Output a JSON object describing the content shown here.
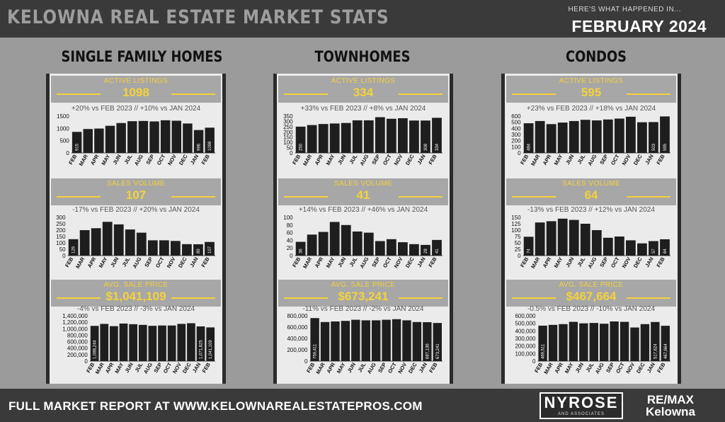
{
  "header": {
    "title": "KELOWNA REAL ESTATE MARKET STATS",
    "subtitle": "HERE'S WHAT HAPPENED IN...",
    "month": "FEBRUARY 2024"
  },
  "footer": {
    "text": "FULL MARKET REPORT AT WWW.KELOWNAREALESTATEPROS.COM",
    "logo_name": "NYROSE",
    "logo_sub": "AND ASSOCIATES",
    "brand_line1": "RE/MAX",
    "brand_line2": "Kelowna"
  },
  "colors": {
    "bars": "#1e1e1e",
    "accent": "#f4d23c",
    "panel": "#ebebeb",
    "band": "#a7a7a7"
  },
  "columns": [
    {
      "title": "SINGLE FAMILY HOMES",
      "sections": [
        {
          "label": "ACTIVE LISTINGS",
          "value": "1098",
          "comparison": "+20% vs FEB 2023 // +10% vs JAN 2024"
        },
        {
          "label": "SALES VOLUME",
          "value": "107",
          "comparison": "-17% vs  FEB 2023 // +20% vs JAN 2024"
        },
        {
          "label": "AVG. SALE PRICE",
          "value": "$1,041,109",
          "comparison": "-4% vs  FEB 2023 // -3% vs JAN 2024"
        }
      ]
    },
    {
      "title": "TOWNHOMES",
      "sections": [
        {
          "label": "ACTIVE LISTINGS",
          "value": "334",
          "comparison": "+33% vs FEB 2023 // +8% vs JAN 2024"
        },
        {
          "label": "SALES VOLUME",
          "value": "41",
          "comparison": "+14% vs  FEB 2023 // +46% vs JAN 2024"
        },
        {
          "label": "AVG. SALE PRICE",
          "value": "$673,241",
          "comparison": "-11% vs  FEB 2023 // -2% vs JAN 2024"
        }
      ]
    },
    {
      "title": "CONDOS",
      "sections": [
        {
          "label": "ACTIVE LISTINGS",
          "value": "595",
          "comparison": "+23% vs FEB 2023 // +18% vs JAN 2024"
        },
        {
          "label": "SALES VOLUME",
          "value": "64",
          "comparison": "-13% vs  FEB 2023 // +12% vs JAN 2024"
        },
        {
          "label": "AVG. SALE PRICE",
          "value": "$467,664",
          "comparison": "-0.5% vs  FEB 2023 // -10% vs JAN 2024"
        }
      ]
    }
  ],
  "chart_data": [
    {
      "type": "bar",
      "categories": [
        "FEB",
        "MAR",
        "APR",
        "MAY",
        "JUN",
        "JUL",
        "AUG",
        "SEP",
        "OCT",
        "NOV",
        "DEC",
        "JAN",
        "FEB"
      ],
      "values": [
        915,
        1040,
        1060,
        1180,
        1300,
        1380,
        1390,
        1370,
        1420,
        1400,
        1280,
        996,
        1098
      ],
      "yticks": [
        "0",
        "500",
        "1000",
        "1500"
      ],
      "ylim": [
        0,
        1600
      ],
      "labels": {
        "0": "915",
        "11": "996",
        "12": "1098"
      }
    },
    {
      "type": "bar",
      "categories": [
        "FEB",
        "MAR",
        "APR",
        "MAY",
        "JUN",
        "JUL",
        "AUG",
        "SEP",
        "OCT",
        "NOV",
        "DEC",
        "JAN",
        "FEB"
      ],
      "values": [
        129,
        200,
        215,
        265,
        245,
        205,
        180,
        120,
        120,
        115,
        90,
        89,
        107
      ],
      "yticks": [
        "0",
        "50",
        "100",
        "150",
        "200",
        "250",
        "300"
      ],
      "ylim": [
        0,
        300
      ],
      "labels": {
        "0": "129",
        "11": "89",
        "12": "107"
      }
    },
    {
      "type": "bar",
      "categories": [
        "FEB",
        "MAR",
        "APR",
        "MAY",
        "JUN",
        "JUL",
        "AUG",
        "SEP",
        "OCT",
        "NOV",
        "DEC",
        "JAN",
        "FEB"
      ],
      "values": [
        1088244,
        1150000,
        1080000,
        1160000,
        1140000,
        1120000,
        1090000,
        1100000,
        1100000,
        1150000,
        1170000,
        1071825,
        1041109
      ],
      "yticks": [
        "0",
        "200,000",
        "400,000",
        "600,000",
        "800,000",
        "1,000,000",
        "1,200,000",
        "1,400,000"
      ],
      "ylim": [
        0,
        1400000
      ],
      "labels": {
        "0": "1,088,244",
        "11": "1,071,825",
        "12": "1,041,109"
      }
    },
    {
      "type": "bar",
      "categories": [
        "FEB",
        "MAR",
        "APR",
        "MAY",
        "JUN",
        "JUL",
        "AUG",
        "SEP",
        "OCT",
        "NOV",
        "DEC",
        "JAN",
        "FEB"
      ],
      "values": [
        250,
        265,
        275,
        280,
        285,
        310,
        310,
        340,
        325,
        330,
        308,
        308,
        334
      ],
      "yticks": [
        "0",
        "50",
        "100",
        "150",
        "200",
        "250",
        "300",
        "350"
      ],
      "ylim": [
        0,
        350
      ],
      "labels": {
        "0": "250",
        "11": "308",
        "12": "334"
      }
    },
    {
      "type": "bar",
      "categories": [
        "FEB",
        "MAR",
        "APR",
        "MAY",
        "JUN",
        "JUL",
        "AUG",
        "SEP",
        "OCT",
        "NOV",
        "DEC",
        "JAN",
        "FEB"
      ],
      "values": [
        36,
        55,
        62,
        88,
        80,
        63,
        60,
        38,
        43,
        35,
        30,
        28,
        41
      ],
      "yticks": [
        "0",
        "20",
        "40",
        "60",
        "80",
        "100"
      ],
      "ylim": [
        0,
        100
      ],
      "labels": {
        "0": "36",
        "11": "28",
        "12": "41"
      }
    },
    {
      "type": "bar",
      "categories": [
        "FEB",
        "MAR",
        "APR",
        "MAY",
        "JUN",
        "JUL",
        "AUG",
        "SEP",
        "OCT",
        "NOV",
        "DEC",
        "JAN",
        "FEB"
      ],
      "values": [
        759411,
        690000,
        700000,
        710000,
        730000,
        720000,
        720000,
        730000,
        740000,
        720000,
        690000,
        687136,
        673241
      ],
      "yticks": [
        "0",
        "200,000",
        "400,000",
        "600,000",
        "800,000"
      ],
      "ylim": [
        0,
        800000
      ],
      "labels": {
        "0": "759,411",
        "11": "687,136",
        "12": "673,241"
      }
    },
    {
      "type": "bar",
      "categories": [
        "FEB",
        "MAR",
        "APR",
        "MAY",
        "JUN",
        "JUL",
        "AUG",
        "SEP",
        "OCT",
        "NOV",
        "DEC",
        "JAN",
        "FEB"
      ],
      "values": [
        484,
        520,
        470,
        495,
        520,
        540,
        530,
        545,
        560,
        590,
        500,
        503,
        595
      ],
      "yticks": [
        "0",
        "100",
        "200",
        "300",
        "400",
        "500",
        "600"
      ],
      "ylim": [
        0,
        600
      ],
      "labels": {
        "0": "484",
        "11": "503",
        "12": "595"
      }
    },
    {
      "type": "bar",
      "categories": [
        "FEB",
        "MAR",
        "APR",
        "MAY",
        "JUN",
        "JUL",
        "AUG",
        "SEP",
        "OCT",
        "NOV",
        "DEC",
        "JAN",
        "FEB"
      ],
      "values": [
        74,
        130,
        135,
        145,
        140,
        125,
        100,
        70,
        75,
        60,
        48,
        57,
        64
      ],
      "yticks": [
        "0",
        "25",
        "50",
        "75",
        "100",
        "125",
        "150"
      ],
      "ylim": [
        0,
        150
      ],
      "labels": {
        "0": "74",
        "11": "57",
        "12": "64"
      }
    },
    {
      "type": "bar",
      "categories": [
        "FEB",
        "MAR",
        "APR",
        "MAY",
        "JUN",
        "JUL",
        "AUG",
        "SEP",
        "OCT",
        "NOV",
        "DEC",
        "JAN",
        "FEB"
      ],
      "values": [
        469511,
        480000,
        490000,
        520000,
        500000,
        505000,
        495000,
        525000,
        520000,
        445000,
        490000,
        517624,
        467664
      ],
      "yticks": [
        "0",
        "100,000",
        "200,000",
        "300,000",
        "400,000",
        "500,000",
        "600,000"
      ],
      "ylim": [
        0,
        600000
      ],
      "labels": {
        "0": "469,511",
        "11": "517,624",
        "12": "467,664"
      }
    }
  ]
}
